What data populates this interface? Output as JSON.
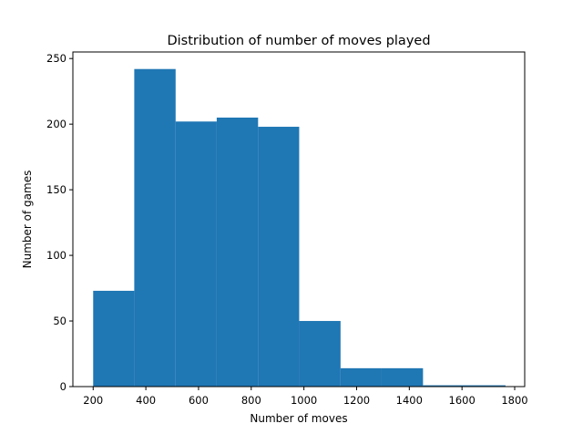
{
  "chart_data": {
    "type": "bar",
    "title": "Distribution of number of moves played",
    "xlabel": "Number of moves",
    "ylabel": "Number of games",
    "xlim": [
      123,
      1838
    ],
    "ylim": [
      0,
      255
    ],
    "x_ticks": [
      200,
      400,
      600,
      800,
      1000,
      1200,
      1400,
      1600,
      1800
    ],
    "y_ticks": [
      0,
      50,
      100,
      150,
      200,
      250
    ],
    "bins": [
      {
        "x0": 200,
        "x1": 356,
        "count": 73
      },
      {
        "x0": 356,
        "x1": 513,
        "count": 242
      },
      {
        "x0": 513,
        "x1": 669,
        "count": 202
      },
      {
        "x0": 669,
        "x1": 826,
        "count": 205
      },
      {
        "x0": 826,
        "x1": 982,
        "count": 198
      },
      {
        "x0": 982,
        "x1": 1139,
        "count": 50
      },
      {
        "x0": 1139,
        "x1": 1295,
        "count": 14
      },
      {
        "x0": 1295,
        "x1": 1452,
        "count": 14
      },
      {
        "x0": 1452,
        "x1": 1608,
        "count": 1
      },
      {
        "x0": 1608,
        "x1": 1765,
        "count": 1
      }
    ],
    "bar_color": "#1f77b4",
    "grid": false,
    "legend": "none"
  }
}
